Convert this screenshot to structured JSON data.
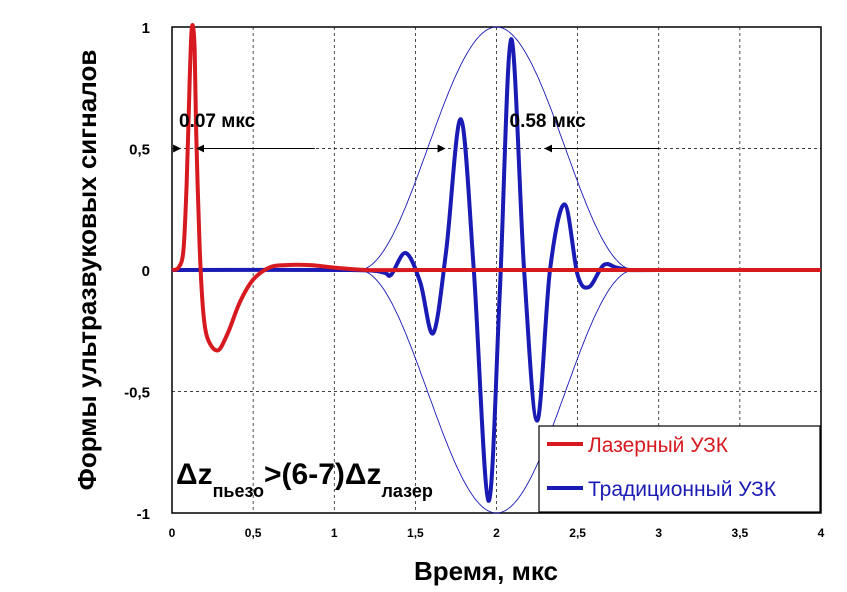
{
  "chart_data": {
    "type": "line",
    "title": "",
    "xlabel": "Время, мкс",
    "ylabel": "Формы ультразвуковых сигналов",
    "xlim": [
      0,
      4
    ],
    "ylim": [
      -1,
      1
    ],
    "x_ticks": [
      "0",
      "0,5",
      "1",
      "1,5",
      "2",
      "2,5",
      "3",
      "3,5",
      "4"
    ],
    "y_ticks": [
      "1",
      "0,5",
      "0",
      "-0,5",
      "-1"
    ],
    "grid": "dashed vertical and horizontal",
    "legend_position": "bottom-right",
    "series": [
      {
        "name": "Лазерный УЗК",
        "color": "#d71920",
        "x": [
          0,
          0.04,
          0.07,
          0.09,
          0.11,
          0.12,
          0.13,
          0.14,
          0.15,
          0.17,
          0.19,
          0.21,
          0.24,
          0.27,
          0.3,
          0.35,
          0.42,
          0.5,
          0.6,
          0.7,
          0.85,
          1.0,
          1.2,
          1.5,
          2.0,
          3.0,
          4.0
        ],
        "y": [
          0,
          0.01,
          0.08,
          0.35,
          0.8,
          0.98,
          1.0,
          0.9,
          0.55,
          0.1,
          -0.15,
          -0.26,
          -0.31,
          -0.33,
          -0.32,
          -0.25,
          -0.13,
          -0.04,
          0.01,
          0.02,
          0.02,
          0.01,
          0.0,
          0.0,
          0.0,
          0.0,
          0.0
        ]
      },
      {
        "name": "Традиционный УЗК",
        "color": "#1a1ab4",
        "x": [
          0,
          1.1,
          1.3,
          1.35,
          1.44,
          1.53,
          1.61,
          1.69,
          1.78,
          1.86,
          1.95,
          2.02,
          2.09,
          2.17,
          2.25,
          2.33,
          2.42,
          2.5,
          2.57,
          2.66,
          2.74,
          2.82,
          3.0,
          4.0
        ],
        "y": [
          0,
          0.0,
          -0.01,
          -0.02,
          0.07,
          -0.05,
          -0.26,
          0.08,
          0.62,
          0.0,
          -0.95,
          -0.1,
          0.95,
          0.0,
          -0.62,
          0.0,
          0.27,
          -0.02,
          -0.07,
          0.02,
          0.01,
          0.0,
          0.0,
          0.0
        ]
      }
    ],
    "envelope": {
      "center": 2.0,
      "amplitude": 1.0,
      "half_width": 0.85
    },
    "annotations": [
      {
        "text": "0.07 мкс",
        "x": 0.45,
        "y": 0.58
      },
      {
        "text": "0.58 мкс",
        "x": 2.45,
        "y": 0.58
      }
    ],
    "formula": {
      "delta": "Δ",
      "z": "z",
      "sub_piezo": "пьезо",
      "middle": ">(6-7)",
      "sub_laser": "лазер"
    }
  }
}
